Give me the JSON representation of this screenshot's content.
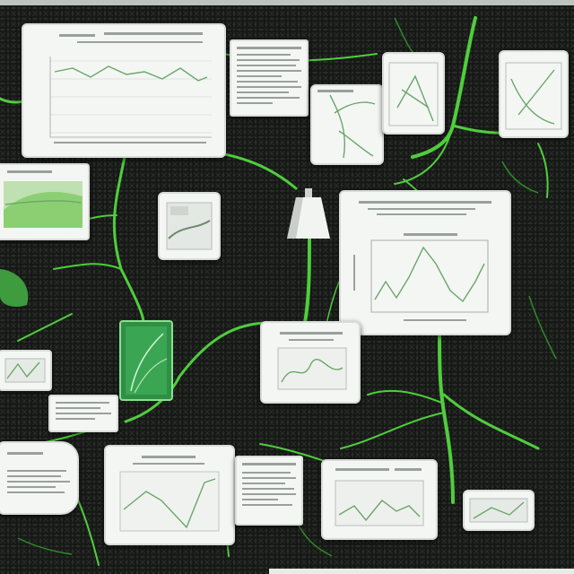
{
  "scene": {
    "description_free": true,
    "palette": {
      "background": "#161816",
      "vine": "#5fd94a",
      "vine_dark": "#2f8a2a",
      "card": "#f4f6f4",
      "plot_line": "#6aa66a"
    }
  },
  "cards": [
    {
      "id": "top-left-chart",
      "kind": "line-chart"
    },
    {
      "id": "top-mid-text",
      "kind": "text-sheet"
    },
    {
      "id": "mid-large-chart",
      "kind": "line-chart"
    },
    {
      "id": "bottom-chart",
      "kind": "line-chart"
    }
  ],
  "icons": [
    "lamp-icon",
    "leaf-icon",
    "jar-icon"
  ]
}
